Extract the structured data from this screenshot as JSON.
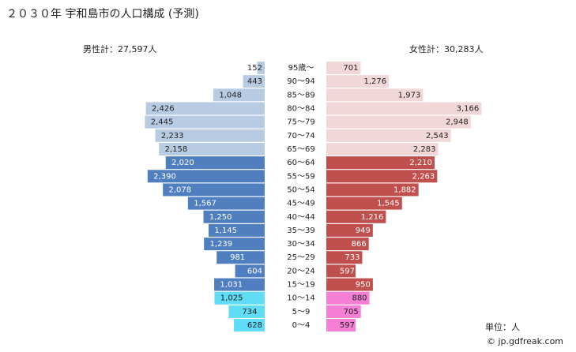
{
  "chart_data": {
    "type": "pyramid",
    "title": "２０３０年 宇和島市の人口構成 (予測)",
    "male_total_label": "男性計：27,597人",
    "female_total_label": "女性計：30,283人",
    "unit_label": "単位：人",
    "credit": "© jp.gdfreak.com",
    "categories": [
      "95歳～",
      "90～94",
      "85～89",
      "80～84",
      "75～79",
      "70～74",
      "65～69",
      "60～64",
      "55～59",
      "50～54",
      "45～49",
      "40～44",
      "35～39",
      "30～34",
      "25～29",
      "20～24",
      "15～19",
      "10～14",
      "5～9",
      "0～4"
    ],
    "male": {
      "values": [
        152,
        443,
        1048,
        2426,
        2445,
        2233,
        2158,
        2020,
        2390,
        2078,
        1567,
        1250,
        1145,
        1239,
        981,
        604,
        1031,
        1025,
        734,
        628
      ],
      "value_labels": [
        "152",
        "443",
        "1,048",
        "2,426",
        "2,445",
        "2,233",
        "2,158",
        "2,020",
        "2,390",
        "2,078",
        "1,567",
        "1,250",
        "1,145",
        "1,239",
        "981",
        "604",
        "1,031",
        "1,025",
        "734",
        "628"
      ],
      "colors": [
        "#b7cbe3",
        "#b7cbe3",
        "#b7cbe3",
        "#b7cbe3",
        "#b7cbe3",
        "#b7cbe3",
        "#b7cbe3",
        "#4f7fbf",
        "#4f7fbf",
        "#4f7fbf",
        "#4f7fbf",
        "#4f7fbf",
        "#4f7fbf",
        "#4f7fbf",
        "#4f7fbf",
        "#4f7fbf",
        "#4f7fbf",
        "#5fdcf6",
        "#5fdcf6",
        "#5fdcf6"
      ]
    },
    "female": {
      "values": [
        701,
        1276,
        1973,
        3166,
        2948,
        2543,
        2283,
        2210,
        2263,
        1882,
        1545,
        1216,
        949,
        866,
        733,
        597,
        950,
        880,
        705,
        597
      ],
      "value_labels": [
        "701",
        "1,276",
        "1,973",
        "3,166",
        "2,948",
        "2,543",
        "2,283",
        "2,210",
        "2,263",
        "1,882",
        "1,545",
        "1,216",
        "949",
        "866",
        "733",
        "597",
        "950",
        "880",
        "705",
        "597"
      ],
      "colors": [
        "#f2d7d9",
        "#f2d7d9",
        "#f2d7d9",
        "#f2d7d9",
        "#f2d7d9",
        "#f2d7d9",
        "#f2d7d9",
        "#c0504d",
        "#c0504d",
        "#c0504d",
        "#c0504d",
        "#c0504d",
        "#c0504d",
        "#c0504d",
        "#c0504d",
        "#c0504d",
        "#c0504d",
        "#f57fd4",
        "#f57fd4",
        "#f57fd4"
      ]
    }
  }
}
